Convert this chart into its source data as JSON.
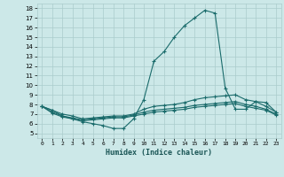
{
  "title": "",
  "xlabel": "Humidex (Indice chaleur)",
  "bg_color": "#cce8e8",
  "grid_color": "#aacccc",
  "line_color": "#1a6b6b",
  "xlim": [
    -0.5,
    23.5
  ],
  "ylim": [
    4.5,
    18.5
  ],
  "xticks": [
    0,
    1,
    2,
    3,
    4,
    5,
    6,
    7,
    8,
    9,
    10,
    11,
    12,
    13,
    14,
    15,
    16,
    17,
    18,
    19,
    20,
    21,
    22,
    23
  ],
  "yticks": [
    5,
    6,
    7,
    8,
    9,
    10,
    11,
    12,
    13,
    14,
    15,
    16,
    17,
    18
  ],
  "line1_x": [
    0,
    1,
    2,
    3,
    4,
    5,
    6,
    7,
    8,
    9,
    10,
    11,
    12,
    13,
    14,
    15,
    16,
    17,
    18,
    19,
    20,
    21,
    22,
    23
  ],
  "line1_y": [
    7.8,
    7.4,
    6.8,
    6.5,
    6.2,
    6.0,
    5.8,
    5.5,
    5.5,
    6.5,
    8.5,
    12.5,
    13.5,
    15.0,
    16.2,
    17.0,
    17.8,
    17.5,
    9.7,
    7.5,
    7.5,
    8.3,
    8.2,
    7.2
  ],
  "line2_x": [
    0,
    1,
    2,
    3,
    4,
    5,
    6,
    7,
    8,
    9,
    10,
    11,
    12,
    13,
    14,
    15,
    16,
    17,
    18,
    19,
    20,
    21,
    22,
    23
  ],
  "line2_y": [
    7.8,
    7.4,
    7.0,
    6.8,
    6.5,
    6.6,
    6.7,
    6.8,
    6.8,
    7.0,
    7.5,
    7.8,
    7.9,
    8.0,
    8.2,
    8.5,
    8.7,
    8.8,
    8.9,
    9.0,
    8.5,
    8.3,
    7.8,
    7.2
  ],
  "line3_x": [
    0,
    1,
    2,
    3,
    4,
    5,
    6,
    7,
    8,
    9,
    10,
    11,
    12,
    13,
    14,
    15,
    16,
    17,
    18,
    19,
    20,
    21,
    22,
    23
  ],
  "line3_y": [
    7.8,
    7.2,
    6.8,
    6.6,
    6.4,
    6.5,
    6.6,
    6.7,
    6.7,
    6.9,
    7.2,
    7.4,
    7.5,
    7.6,
    7.7,
    7.9,
    8.0,
    8.1,
    8.2,
    8.3,
    8.0,
    7.8,
    7.5,
    7.0
  ],
  "line4_x": [
    0,
    1,
    2,
    3,
    4,
    5,
    6,
    7,
    8,
    9,
    10,
    11,
    12,
    13,
    14,
    15,
    16,
    17,
    18,
    19,
    20,
    21,
    22,
    23
  ],
  "line4_y": [
    7.8,
    7.1,
    6.7,
    6.5,
    6.3,
    6.4,
    6.5,
    6.6,
    6.6,
    6.8,
    7.0,
    7.2,
    7.3,
    7.4,
    7.5,
    7.7,
    7.8,
    7.9,
    8.0,
    8.1,
    7.8,
    7.6,
    7.4,
    6.9
  ]
}
